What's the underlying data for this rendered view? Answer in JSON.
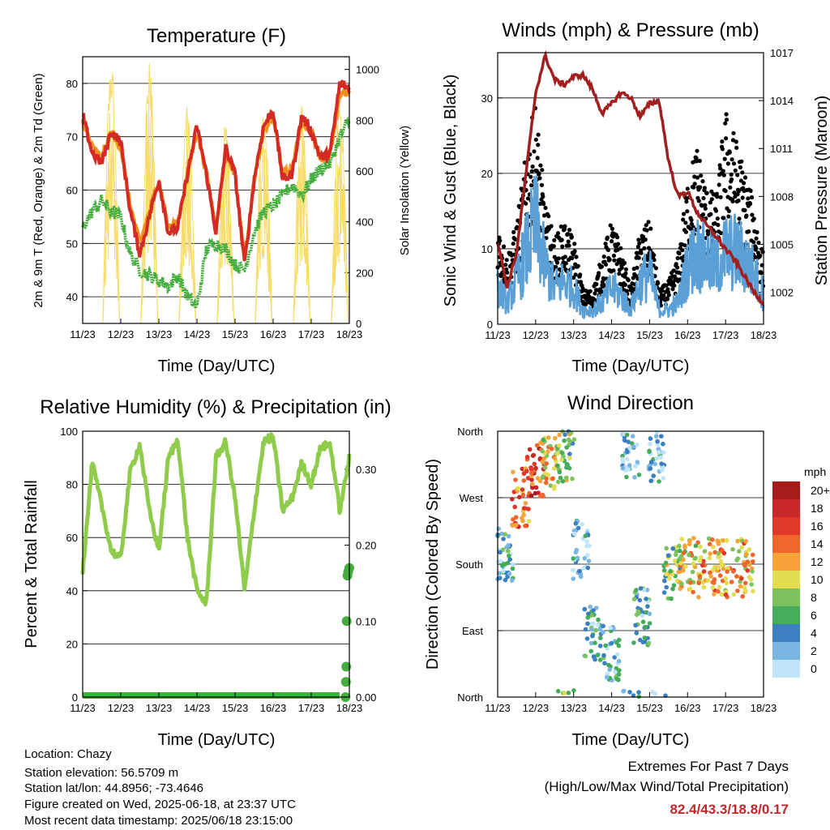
{
  "footer": {
    "location": "Location: Chazy",
    "elevation": "Station elevation: 56.5709 m",
    "latlon": "Station lat/lon: 44.8956; -73.4646",
    "created": "Figure created on Wed, 2025-06-18, at 23:37 UTC",
    "recent": "Most recent data timestamp: 2025/06/18 23:15:00",
    "extremes_title": "Extremes For Past 7 Days",
    "extremes_sub": "(High/Low/Max Wind/Total Precipitation)",
    "extremes_values": "82.4/43.3/18.8/0.17"
  },
  "colors": {
    "temp2m": "#d42a24",
    "temp9m": "#f0901e",
    "dewpoint": "#44ad3e",
    "solar": "#f7dc6a",
    "wind": "#5aa0d6",
    "gust": "#000000",
    "pressure": "#a21f1f",
    "rh": "#8fcc4c",
    "precip": "#44ad3e"
  },
  "chart_data": [
    {
      "type": "line",
      "title": "Temperature (F)",
      "xlabel": "Time (Day/UTC)",
      "ylabel": "2m & 9m T (Red, Orange) & 2m Td (Green)",
      "y2label": "Solar Insolation (Yellow)",
      "x_ticks": [
        "11/23",
        "12/23",
        "13/23",
        "14/23",
        "15/23",
        "16/23",
        "17/23",
        "18/23"
      ],
      "ylim": [
        35,
        85
      ],
      "y_ticks": [
        40,
        50,
        60,
        70,
        80
      ],
      "y2lim": [
        0,
        1050
      ],
      "y2_ticks": [
        0,
        200,
        400,
        600,
        800,
        1000
      ],
      "x_days": [
        0,
        0.25,
        0.5,
        0.75,
        1,
        1.25,
        1.5,
        1.75,
        2,
        2.25,
        2.5,
        2.75,
        3,
        3.25,
        3.5,
        3.75,
        4,
        4.25,
        4.5,
        4.75,
        5,
        5.25,
        5.5,
        5.75,
        6,
        6.25,
        6.5,
        6.75,
        7
      ],
      "series": [
        {
          "name": "2m T",
          "values": [
            74,
            67,
            65,
            71,
            69,
            56,
            48,
            55,
            62,
            52,
            53,
            63,
            72,
            63,
            52,
            68,
            63,
            46,
            62,
            72,
            75,
            62,
            63,
            74,
            71,
            66,
            67,
            80,
            79
          ]
        },
        {
          "name": "9m T",
          "values": [
            73,
            68,
            66,
            71,
            68,
            57,
            50,
            56,
            62,
            53,
            54,
            63,
            71,
            63,
            53,
            67,
            63,
            47,
            62,
            71,
            74,
            63,
            64,
            73,
            71,
            66,
            67,
            78,
            78
          ]
        },
        {
          "name": "2m Td",
          "values": [
            53,
            56,
            58,
            56,
            55,
            48,
            45,
            44,
            43,
            42,
            44,
            40,
            38,
            49,
            50,
            49,
            46,
            45,
            52,
            56,
            57,
            59,
            61,
            59,
            62,
            64,
            65,
            70,
            73
          ]
        },
        {
          "name": "Solar",
          "peaks": [
            {
              "day": 0.75,
              "value": 1000
            },
            {
              "day": 1.75,
              "value": 990
            },
            {
              "day": 2.75,
              "value": 820
            },
            {
              "day": 3.75,
              "value": 760
            },
            {
              "day": 4.75,
              "value": 840
            },
            {
              "day": 5.75,
              "value": 840
            },
            {
              "day": 6.75,
              "value": 870
            }
          ]
        }
      ]
    },
    {
      "type": "line",
      "title": "Winds (mph) & Pressure (mb)",
      "xlabel": "Time (Day/UTC)",
      "ylabel": "Sonic Wind & Gust (Blue, Black)",
      "y2label": "Station Pressure (Maroon)",
      "x_ticks": [
        "11/23",
        "12/23",
        "13/23",
        "14/23",
        "15/23",
        "16/23",
        "17/23",
        "18/23"
      ],
      "ylim": [
        0,
        36
      ],
      "y_ticks": [
        0,
        10,
        20,
        30
      ],
      "y2lim": [
        1000,
        1017
      ],
      "y2_ticks": [
        1002,
        1005,
        1008,
        1011,
        1014,
        1017
      ],
      "x_days": [
        0,
        0.25,
        0.5,
        0.75,
        1,
        1.25,
        1.5,
        1.75,
        2,
        2.25,
        2.5,
        2.75,
        3,
        3.25,
        3.5,
        3.75,
        4,
        4.25,
        4.5,
        4.75,
        5,
        5.25,
        5.5,
        5.75,
        6,
        6.25,
        6.5,
        6.75,
        7
      ],
      "series": [
        {
          "name": "Sonic Wind",
          "values": [
            5,
            3,
            6,
            10,
            14,
            8,
            5,
            6,
            5,
            2,
            2,
            3,
            5,
            4,
            2,
            6,
            7,
            2,
            2,
            3,
            8,
            10,
            9,
            8,
            10,
            10,
            9,
            7,
            4
          ]
        },
        {
          "name": "Gust",
          "values": [
            12,
            8,
            12,
            20,
            26,
            14,
            10,
            12,
            10,
            4,
            4,
            8,
            12,
            9,
            4,
            11,
            12,
            4,
            5,
            8,
            17,
            21,
            16,
            15,
            25,
            22,
            18,
            14,
            8
          ]
        },
        {
          "name": "Pressure",
          "values": [
            1005.2,
            1002.3,
            1004.5,
            1009.5,
            1014.5,
            1016.8,
            1015.3,
            1015.0,
            1015.5,
            1015.6,
            1014.7,
            1013.2,
            1013.8,
            1014.5,
            1014.2,
            1013.0,
            1013.8,
            1014.0,
            1010.2,
            1008.0,
            1008.3,
            1007.0,
            1006.2,
            1005.5,
            1004.7,
            1004.0,
            1003.0,
            1002.0,
            1001.3
          ]
        }
      ]
    },
    {
      "type": "line",
      "title": "Relative Humidity (%) & Precipitation (in)",
      "xlabel": "Time (Day/UTC)",
      "ylabel": "Percent & Total Rainfall",
      "x_ticks": [
        "11/23",
        "12/23",
        "13/23",
        "14/23",
        "15/23",
        "16/23",
        "17/23",
        "18/23"
      ],
      "ylim": [
        0,
        100
      ],
      "y_ticks": [
        0,
        20,
        40,
        60,
        80,
        100
      ],
      "y2lim": [
        0,
        0.35
      ],
      "y2_ticks": [
        0.0,
        0.1,
        0.2,
        0.3
      ],
      "y2_tick_labels": [
        "0.00",
        "0.10",
        "0.20",
        "0.30"
      ],
      "x_days": [
        0,
        0.25,
        0.5,
        0.75,
        1,
        1.25,
        1.5,
        1.75,
        2,
        2.25,
        2.5,
        2.75,
        3,
        3.25,
        3.5,
        3.75,
        4,
        4.25,
        4.5,
        4.75,
        5,
        5.25,
        5.5,
        5.75,
        6,
        6.25,
        6.5,
        6.75,
        7
      ],
      "series": [
        {
          "name": "RH",
          "values": [
            47,
            88,
            72,
            55,
            52,
            85,
            95,
            70,
            55,
            90,
            97,
            60,
            40,
            35,
            90,
            96,
            75,
            40,
            70,
            96,
            98,
            70,
            75,
            88,
            80,
            94,
            95,
            70,
            90
          ]
        },
        {
          "name": "Precip",
          "points": [
            {
              "day": 6.9,
              "value": 0.0
            },
            {
              "day": 6.91,
              "value": 0.02
            },
            {
              "day": 6.92,
              "value": 0.04
            },
            {
              "day": 6.93,
              "value": 0.1
            },
            {
              "day": 6.95,
              "value": 0.16
            },
            {
              "day": 6.97,
              "value": 0.165
            },
            {
              "day": 7.0,
              "value": 0.17
            }
          ]
        }
      ]
    },
    {
      "type": "scatter",
      "title": "Wind Direction",
      "xlabel": "Time (Day/UTC)",
      "ylabel": "Direction (Colored By Speed)",
      "x_ticks": [
        "11/23",
        "12/23",
        "13/23",
        "14/23",
        "15/23",
        "16/23",
        "17/23",
        "18/23"
      ],
      "y_ticks": [
        "North",
        "East",
        "South",
        "West",
        "North"
      ],
      "ylim": [
        0,
        360
      ],
      "legend_title": "mph",
      "legend_labels": [
        "20+",
        "18",
        "16",
        "14",
        "12",
        "10",
        "8",
        "6",
        "4",
        "2",
        "0"
      ],
      "legend_colors": [
        "#a61c1c",
        "#c8282a",
        "#e0392a",
        "#f0652b",
        "#f7a33a",
        "#e3dd52",
        "#7cc35d",
        "#44ad5c",
        "#3c7fc1",
        "#7bb6e3",
        "#bfe4f7"
      ],
      "clusters": [
        {
          "day": 0.2,
          "dir": 190,
          "speed": 4
        },
        {
          "day": 0.6,
          "dir": 270,
          "speed": 14
        },
        {
          "day": 1.0,
          "dir": 310,
          "speed": 16
        },
        {
          "day": 1.4,
          "dir": 320,
          "speed": 10
        },
        {
          "day": 1.8,
          "dir": 330,
          "speed": 8
        },
        {
          "day": 2.2,
          "dir": 200,
          "speed": 2
        },
        {
          "day": 2.5,
          "dir": 90,
          "speed": 4
        },
        {
          "day": 3.0,
          "dir": 60,
          "speed": 4
        },
        {
          "day": 3.5,
          "dir": 330,
          "speed": 2
        },
        {
          "day": 3.8,
          "dir": 110,
          "speed": 4
        },
        {
          "day": 4.2,
          "dir": 330,
          "speed": 2
        },
        {
          "day": 4.6,
          "dir": 170,
          "speed": 8
        },
        {
          "day": 5.0,
          "dir": 180,
          "speed": 10
        },
        {
          "day": 5.5,
          "dir": 175,
          "speed": 12
        },
        {
          "day": 6.0,
          "dir": 175,
          "speed": 12
        },
        {
          "day": 6.5,
          "dir": 175,
          "speed": 12
        }
      ]
    }
  ]
}
